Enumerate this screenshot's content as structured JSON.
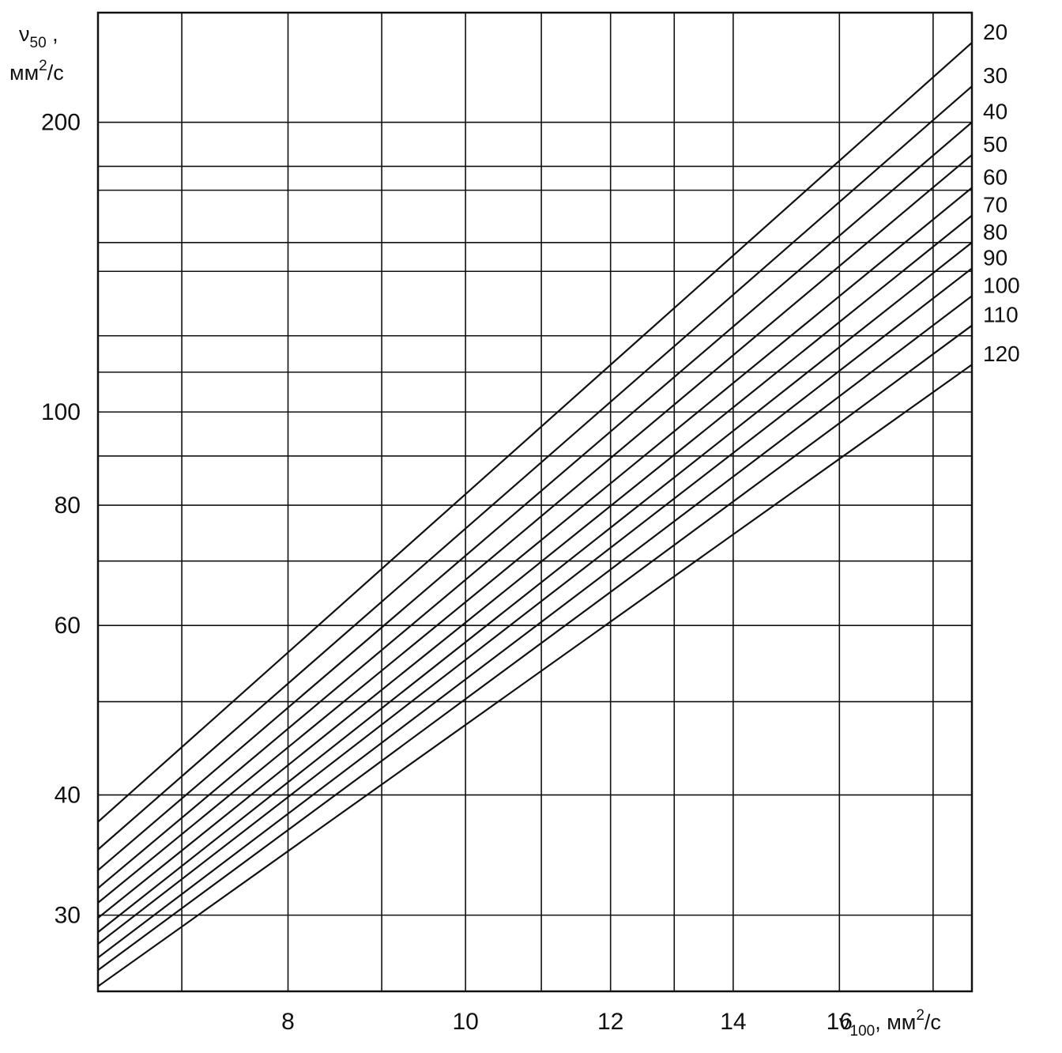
{
  "chart_data": {
    "type": "line",
    "title": "",
    "xlabel": {
      "prefix": "ν",
      "sub": "100",
      "unit_before_sup": ", мм",
      "sup": "2",
      "unit_after_sup": "/с"
    },
    "ylabel": {
      "prefix": "ν",
      "sub": "50",
      "comma": " ,",
      "unit_before_sup": "мм",
      "sup": "2",
      "unit_after_sup": "/с"
    },
    "x_scale": "log",
    "y_scale": "log",
    "xlim": [
      6.3,
      18.9
    ],
    "ylim": [
      25,
      260
    ],
    "x_ticks": [
      {
        "value": 8,
        "label": "8"
      },
      {
        "value": 10,
        "label": "10"
      },
      {
        "value": 12,
        "label": "12"
      },
      {
        "value": 14,
        "label": "14"
      },
      {
        "value": 16,
        "label": "16"
      }
    ],
    "x_gridlines": [
      7,
      8,
      9,
      10,
      11,
      12,
      13,
      14,
      16,
      18
    ],
    "y_ticks": [
      {
        "value": 30,
        "label": "30"
      },
      {
        "value": 40,
        "label": "40"
      },
      {
        "value": 60,
        "label": "60"
      },
      {
        "value": 80,
        "label": "80"
      },
      {
        "value": 100,
        "label": "100"
      },
      {
        "value": 200,
        "label": "200"
      }
    ],
    "y_gridlines": [
      30,
      40,
      50,
      60,
      70,
      80,
      90,
      100,
      110,
      120,
      140,
      150,
      170,
      180,
      200
    ],
    "grid": true,
    "legend": "series labels at right end of lines",
    "series": [
      {
        "name": "20",
        "x": [
          6.3,
          18.9
        ],
        "y": [
          37.5,
          242
        ]
      },
      {
        "name": "30",
        "x": [
          6.3,
          18.9
        ],
        "y": [
          35.1,
          218
        ]
      },
      {
        "name": "40",
        "x": [
          6.3,
          18.9
        ],
        "y": [
          33.4,
          200
        ]
      },
      {
        "name": "50",
        "x": [
          6.3,
          18.9
        ],
        "y": [
          32.0,
          185
        ]
      },
      {
        "name": "60",
        "x": [
          6.3,
          18.9
        ],
        "y": [
          30.9,
          171
        ]
      },
      {
        "name": "70",
        "x": [
          6.3,
          18.9
        ],
        "y": [
          29.8,
          160
        ]
      },
      {
        "name": "80",
        "x": [
          6.3,
          18.9
        ],
        "y": [
          28.8,
          150
        ]
      },
      {
        "name": "90",
        "x": [
          6.3,
          18.9
        ],
        "y": [
          28.0,
          141
        ]
      },
      {
        "name": "100",
        "x": [
          6.3,
          18.9
        ],
        "y": [
          27.1,
          132
        ]
      },
      {
        "name": "110",
        "x": [
          6.3,
          18.9
        ],
        "y": [
          26.3,
          123
        ]
      },
      {
        "name": "120",
        "x": [
          6.3,
          18.9
        ],
        "y": [
          25.3,
          112
        ]
      }
    ]
  }
}
